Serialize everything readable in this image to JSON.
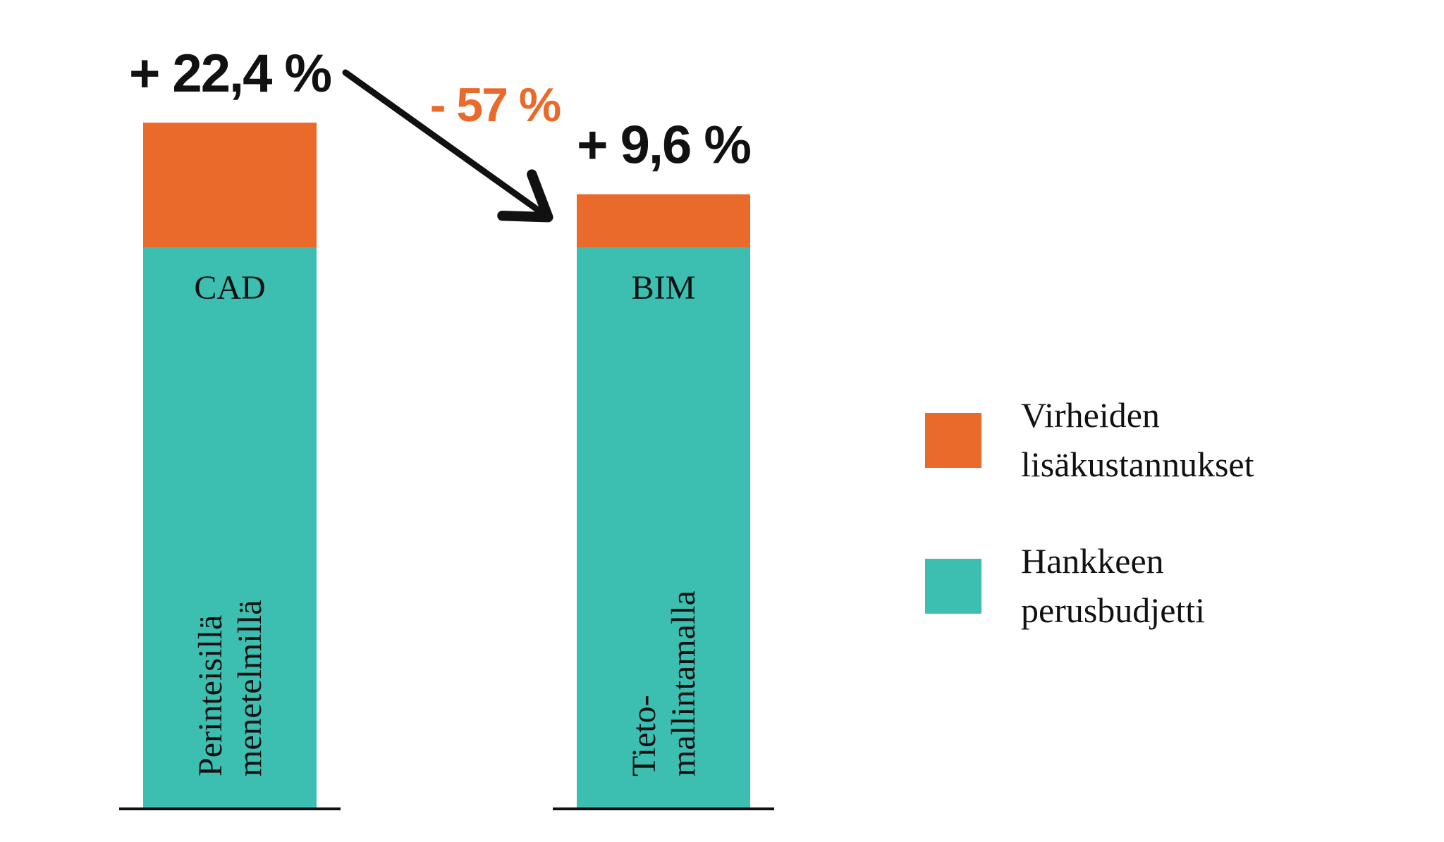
{
  "colors": {
    "extra_costs": "#EA6A2B",
    "base_budget": "#3CBFB0",
    "text": "#111111",
    "change": "#EA6A2B"
  },
  "chart_data": {
    "type": "bar",
    "stacked": true,
    "categories": [
      "CAD",
      "BIM"
    ],
    "category_descriptions": [
      [
        "Perinteisillä",
        "menetelmillä"
      ],
      [
        "Tieto-",
        "mallintamalla"
      ]
    ],
    "series": [
      {
        "name": "Hankkeen perusbudjetti",
        "values": [
          100,
          100
        ],
        "color_key": "base_budget"
      },
      {
        "name": "Virheiden lisäkustannukset",
        "values": [
          22.4,
          9.6
        ],
        "color_key": "extra_costs"
      }
    ],
    "value_labels": [
      "+ 22,4 %",
      "+ 9,6 %"
    ],
    "change_label": "- 57 %",
    "ylim": [
      0,
      122.4
    ],
    "legend": {
      "placement": "right",
      "items": [
        {
          "lines": [
            "Virheiden",
            "lisäkustannukset"
          ],
          "color_key": "extra_costs"
        },
        {
          "lines": [
            "Hankkeen",
            "perusbudjetti"
          ],
          "color_key": "base_budget"
        }
      ]
    },
    "axes_visible": false,
    "grid": false
  }
}
